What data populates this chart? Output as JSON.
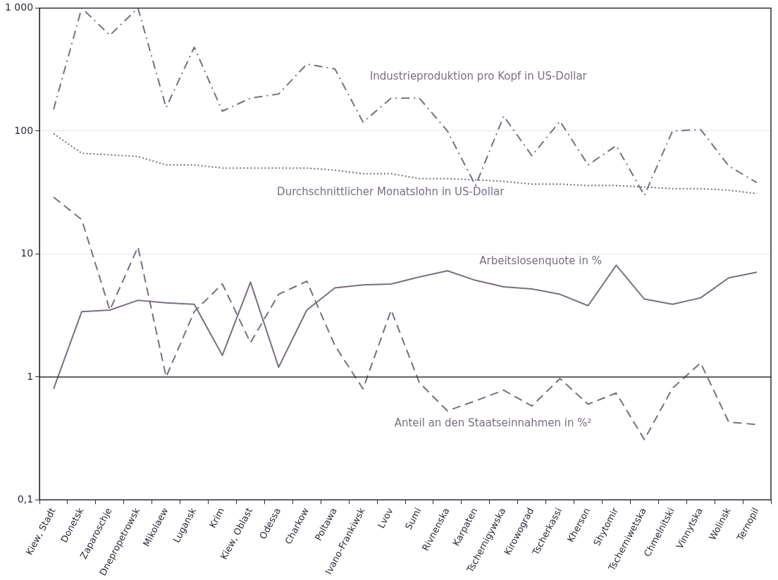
{
  "chart_data": {
    "type": "line",
    "categories": [
      "Kiew, Stadt",
      "Donetsk",
      "Zaparoschje",
      "Dnepropetrowsk",
      "Mikolaew",
      "Lugansk",
      "Krim",
      "Kiew, Oblast",
      "Odessa",
      "Charkow",
      "Poltawa",
      "Ivano-Frankiwsk",
      "Lvov",
      "Sumi",
      "Rivnenska",
      "Karpaten",
      "Tschernigywska",
      "Kirowograd",
      "Tscherkassi",
      "Kherson",
      "Shytomir",
      "Tscherniwetska",
      "Chmelnitski",
      "Vinnytska",
      "Wolinsk",
      "Ternopil"
    ],
    "series": [
      {
        "name": "Industrieproduktion pro Kopf in US-Dollar",
        "color": "#7a6e80",
        "line_style": "dashdot",
        "values": [
          150,
          1000,
          600,
          1000,
          155,
          480,
          145,
          185,
          200,
          350,
          320,
          118,
          185,
          185,
          100,
          36,
          132,
          63,
          120,
          53,
          76,
          30,
          100,
          103,
          52,
          38
        ]
      },
      {
        "name": "Durchschnittlicher Monatslohn in US-Dollar",
        "color": "#7a6e80",
        "line_style": "dotted",
        "values": [
          95,
          66,
          64,
          62,
          53,
          53,
          50,
          50,
          50,
          50,
          48,
          45,
          45,
          41,
          41,
          40,
          39,
          37,
          37,
          36,
          36,
          35,
          34,
          34,
          33,
          31
        ]
      },
      {
        "name": "Arbeitslosenquote in %",
        "color": "#7a6e80",
        "line_style": "solid",
        "values": [
          0.8,
          3.4,
          3.5,
          4.2,
          4.0,
          3.9,
          1.5,
          5.9,
          1.2,
          3.5,
          5.3,
          5.6,
          5.7,
          6.5,
          7.3,
          6.1,
          5.4,
          5.2,
          4.7,
          3.8,
          8.1,
          4.3,
          3.9,
          4.4,
          6.4,
          7.1
        ]
      },
      {
        "name": "Anteil an den Staatseinnahmen in %²",
        "color": "#7a6e80",
        "line_style": "dashed",
        "values": [
          29,
          19,
          3.5,
          11.4,
          1.0,
          3.4,
          5.7,
          1.9,
          4.7,
          6.0,
          1.8,
          0.8,
          3.5,
          0.9,
          0.53,
          0.64,
          0.78,
          0.58,
          0.97,
          0.6,
          0.74,
          0.31,
          0.81,
          1.3,
          0.43,
          0.41
        ]
      }
    ],
    "log": "y",
    "ylim": [
      0.1,
      1000
    ],
    "yticks": [
      {
        "value": 0.1,
        "label": "0,1"
      },
      1,
      10,
      100,
      {
        "value": 1000,
        "label": "1 000"
      }
    ],
    "grid": "y",
    "marker": "none",
    "legend": false,
    "ref_lines": [
      {
        "axis": "y",
        "value": 1,
        "color": "#333333"
      }
    ]
  }
}
